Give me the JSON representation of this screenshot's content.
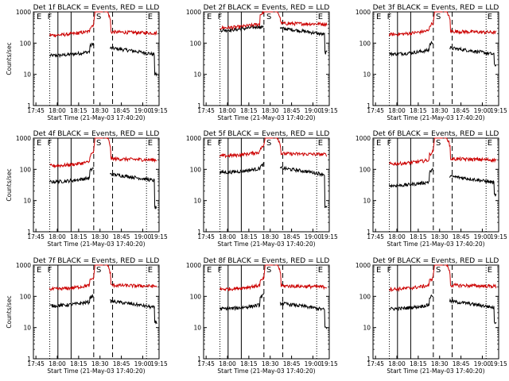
{
  "common": {
    "xlabel": "Start Time (21-May-03 17:40:20)",
    "ylabel": "Counts/sec",
    "x_ticks": [
      "17:45",
      "18:00",
      "18:15",
      "18:30",
      "18:45",
      "19:00",
      "19:15"
    ],
    "y_ticks": [
      "1",
      "10",
      "100",
      "1000"
    ],
    "markers": [
      "E",
      "F",
      "S",
      "E"
    ],
    "ylim": [
      1,
      1000
    ],
    "y_scale": "log",
    "xlim_minutes_after_start": [
      0,
      100
    ]
  },
  "chart_data": [
    {
      "type": "line",
      "title": "Det 1f BLACK = Events, RED = LLD",
      "ylabel": "Counts/sec",
      "series": [
        {
          "color": "#000000",
          "base": 40,
          "pre_flare_peak": 80,
          "post_flare": 70,
          "tail": 10
        },
        {
          "color": "#cc0000",
          "base": 180,
          "pre_flare_peak": 320,
          "post_flare": 230,
          "tail": 210
        }
      ]
    },
    {
      "type": "line",
      "title": "Det 2f BLACK = Events, RED = LLD",
      "ylabel": "",
      "series": [
        {
          "color": "#000000",
          "base": 260,
          "pre_flare_peak": 300,
          "post_flare": 300,
          "tail": 50
        },
        {
          "color": "#cc0000",
          "base": 310,
          "pre_flare_peak": 800,
          "post_flare": 430,
          "tail": 410
        }
      ]
    },
    {
      "type": "line",
      "title": "Det 3f BLACK = Events, RED = LLD",
      "ylabel": "",
      "series": [
        {
          "color": "#000000",
          "base": 45,
          "pre_flare_peak": 90,
          "post_flare": 70,
          "tail": 20
        },
        {
          "color": "#cc0000",
          "base": 190,
          "pre_flare_peak": 360,
          "post_flare": 240,
          "tail": 220
        }
      ]
    },
    {
      "type": "line",
      "title": "Det 4f BLACK = Events, RED = LLD",
      "ylabel": "Counts/sec",
      "series": [
        {
          "color": "#000000",
          "base": 40,
          "pre_flare_peak": 90,
          "post_flare": 70,
          "tail": 6
        },
        {
          "color": "#cc0000",
          "base": 130,
          "pre_flare_peak": 280,
          "post_flare": 220,
          "tail": 200
        }
      ]
    },
    {
      "type": "line",
      "title": "Det 5f BLACK = Events, RED = LLD",
      "ylabel": "",
      "series": [
        {
          "color": "#000000",
          "base": 80,
          "pre_flare_peak": 120,
          "post_flare": 110,
          "tail": 6
        },
        {
          "color": "#cc0000",
          "base": 270,
          "pre_flare_peak": 450,
          "post_flare": 320,
          "tail": 300
        }
      ]
    },
    {
      "type": "line",
      "title": "Det 6f BLACK = Events, RED = LLD",
      "ylabel": "",
      "series": [
        {
          "color": "#000000",
          "base": 30,
          "pre_flare_peak": 80,
          "post_flare": 60,
          "tail": 15
        },
        {
          "color": "#cc0000",
          "base": 150,
          "pre_flare_peak": 300,
          "post_flare": 220,
          "tail": 200
        }
      ]
    },
    {
      "type": "line",
      "title": "Det 7f BLACK = Events, RED = LLD",
      "ylabel": "Counts/sec",
      "series": [
        {
          "color": "#000000",
          "base": 50,
          "pre_flare_peak": 90,
          "post_flare": 70,
          "tail": 15
        },
        {
          "color": "#cc0000",
          "base": 170,
          "pre_flare_peak": 320,
          "post_flare": 230,
          "tail": 210
        }
      ]
    },
    {
      "type": "line",
      "title": "Det 8f BLACK = Events, RED = LLD",
      "ylabel": "",
      "series": [
        {
          "color": "#000000",
          "base": 40,
          "pre_flare_peak": 90,
          "post_flare": 60,
          "tail": 10
        },
        {
          "color": "#cc0000",
          "base": 170,
          "pre_flare_peak": 300,
          "post_flare": 220,
          "tail": 200
        }
      ]
    },
    {
      "type": "line",
      "title": "Det 9f BLACK = Events, RED = LLD",
      "ylabel": "",
      "series": [
        {
          "color": "#000000",
          "base": 40,
          "pre_flare_peak": 90,
          "post_flare": 70,
          "tail": 15
        },
        {
          "color": "#cc0000",
          "base": 170,
          "pre_flare_peak": 320,
          "post_flare": 230,
          "tail": 210
        }
      ]
    }
  ]
}
